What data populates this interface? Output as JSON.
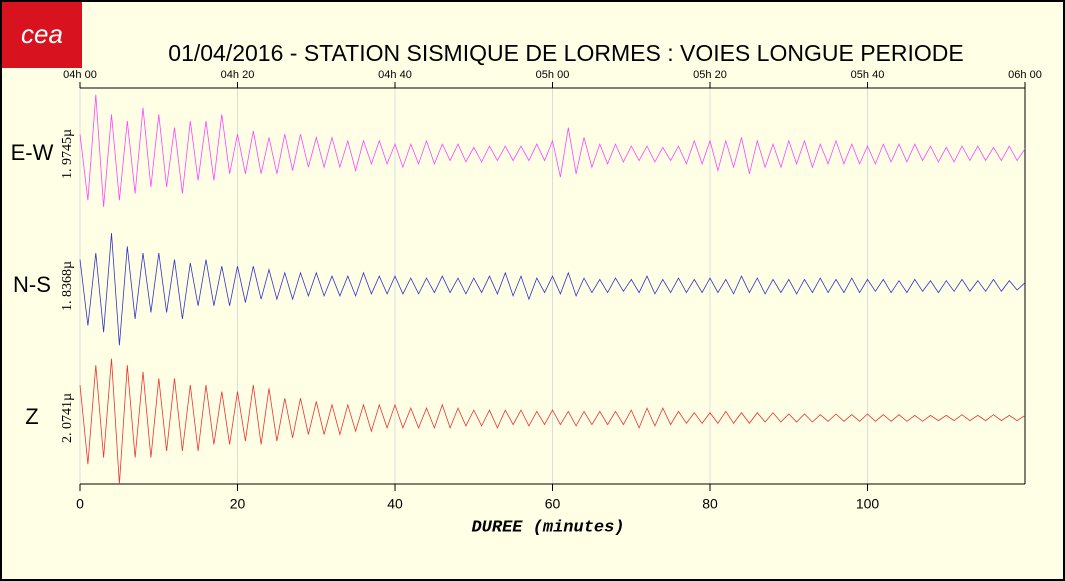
{
  "logo": "cea",
  "chart_data": {
    "type": "line",
    "title": "01/04/2016  -  STATION SISMIQUE DE LORMES : VOIES LONGUE PERIODE",
    "xlabel": "DUREE (minutes)",
    "xlim": [
      0,
      120
    ],
    "xticks": [
      0,
      20,
      40,
      60,
      80,
      100
    ],
    "x2ticks": [
      {
        "value": 0,
        "label": "04h 00"
      },
      {
        "value": 20,
        "label": "04h 20"
      },
      {
        "value": 40,
        "label": "04h 40"
      },
      {
        "value": 60,
        "label": "05h 00"
      },
      {
        "value": 80,
        "label": "05h 20"
      },
      {
        "value": 100,
        "label": "05h 40"
      },
      {
        "value": 120,
        "label": "06h 00"
      }
    ],
    "ylim": [
      -1,
      1
    ],
    "grid": true,
    "x": [
      0,
      1,
      2,
      3,
      4,
      5,
      6,
      7,
      8,
      9,
      10,
      11,
      12,
      13,
      14,
      15,
      16,
      17,
      18,
      19,
      20,
      21,
      22,
      23,
      24,
      25,
      26,
      27,
      28,
      29,
      30,
      31,
      32,
      33,
      34,
      35,
      36,
      37,
      38,
      39,
      40,
      41,
      42,
      43,
      44,
      45,
      46,
      47,
      48,
      49,
      50,
      51,
      52,
      53,
      54,
      55,
      56,
      57,
      58,
      59,
      60,
      61,
      62,
      63,
      64,
      65,
      66,
      67,
      68,
      69,
      70,
      71,
      72,
      73,
      74,
      75,
      76,
      77,
      78,
      79,
      80,
      81,
      82,
      83,
      84,
      85,
      86,
      87,
      88,
      89,
      90,
      91,
      92,
      93,
      94,
      95,
      96,
      97,
      98,
      99,
      100,
      101,
      102,
      103,
      104,
      105,
      106,
      107,
      108,
      109,
      110,
      111,
      112,
      113,
      114,
      115,
      116,
      117,
      118,
      119,
      120
    ],
    "series": [
      {
        "name": "E-W",
        "scale_label": "1. 9745µ",
        "color": "#ff44ff",
        "values": [
          0.3,
          -0.7,
          0.9,
          -0.8,
          0.6,
          -0.7,
          0.5,
          -0.6,
          0.7,
          -0.5,
          0.6,
          -0.5,
          0.4,
          -0.6,
          0.5,
          -0.4,
          0.5,
          -0.4,
          0.6,
          -0.3,
          0.3,
          -0.3,
          0.35,
          -0.3,
          0.25,
          -0.3,
          0.3,
          -0.25,
          0.3,
          -0.2,
          0.25,
          -0.2,
          0.25,
          -0.2,
          0.2,
          -0.25,
          0.2,
          -0.15,
          0.2,
          -0.15,
          0.15,
          -0.2,
          0.15,
          -0.15,
          0.2,
          -0.15,
          0.15,
          -0.1,
          0.15,
          -0.12,
          0.1,
          -0.12,
          0.12,
          -0.1,
          0.12,
          -0.1,
          0.12,
          -0.1,
          0.15,
          -0.1,
          0.2,
          -0.35,
          0.4,
          -0.3,
          0.25,
          -0.2,
          0.15,
          -0.15,
          0.15,
          -0.12,
          0.12,
          -0.1,
          0.12,
          -0.12,
          0.1,
          -0.1,
          0.12,
          -0.15,
          0.2,
          -0.15,
          0.2,
          -0.25,
          0.2,
          -0.2,
          0.25,
          -0.3,
          0.2,
          -0.2,
          0.15,
          -0.2,
          0.2,
          -0.15,
          0.2,
          -0.2,
          0.15,
          -0.15,
          0.2,
          -0.15,
          0.15,
          -0.15,
          0.12,
          -0.15,
          0.15,
          -0.12,
          0.15,
          -0.12,
          0.15,
          -0.1,
          0.12,
          -0.12,
          0.1,
          -0.12,
          0.12,
          -0.1,
          0.12,
          -0.1,
          0.1,
          -0.1,
          0.12,
          -0.1,
          0.08
        ]
      },
      {
        "name": "N-S",
        "scale_label": "1. 8368µ",
        "color": "#3333cc",
        "values": [
          0.4,
          -0.6,
          0.5,
          -0.7,
          0.8,
          -0.9,
          0.6,
          -0.5,
          0.5,
          -0.4,
          0.5,
          -0.4,
          0.4,
          -0.5,
          0.35,
          -0.3,
          0.4,
          -0.3,
          0.3,
          -0.3,
          0.3,
          -0.25,
          0.3,
          -0.2,
          0.25,
          -0.2,
          0.2,
          -0.2,
          0.2,
          -0.15,
          0.2,
          -0.15,
          0.15,
          -0.15,
          0.15,
          -0.15,
          0.2,
          -0.12,
          0.15,
          -0.12,
          0.15,
          -0.12,
          0.12,
          -0.12,
          0.12,
          -0.1,
          0.15,
          -0.1,
          0.12,
          -0.12,
          0.12,
          -0.1,
          0.15,
          -0.12,
          0.2,
          -0.15,
          0.15,
          -0.2,
          0.12,
          -0.1,
          0.15,
          -0.12,
          0.2,
          -0.15,
          0.12,
          -0.1,
          0.1,
          -0.1,
          0.12,
          -0.08,
          0.1,
          -0.1,
          0.15,
          -0.12,
          0.1,
          -0.1,
          0.12,
          -0.1,
          0.1,
          -0.1,
          0.12,
          -0.1,
          0.1,
          -0.12,
          0.15,
          -0.1,
          0.12,
          -0.12,
          0.1,
          -0.1,
          0.1,
          -0.12,
          0.1,
          -0.1,
          0.12,
          -0.1,
          0.1,
          -0.1,
          0.12,
          -0.1,
          0.1,
          -0.08,
          0.1,
          -0.1,
          0.08,
          -0.1,
          0.1,
          -0.08,
          0.08,
          -0.1,
          0.08,
          -0.08,
          0.1,
          -0.08,
          0.08,
          -0.08,
          0.1,
          -0.08,
          0.08,
          -0.06,
          0.05
        ]
      },
      {
        "name": "Z",
        "scale_label": "2. 0741µ",
        "color": "#ee3333",
        "values": [
          0.5,
          -0.7,
          0.8,
          -0.6,
          0.9,
          -1.0,
          0.8,
          -0.6,
          0.7,
          -0.6,
          0.6,
          -0.5,
          0.6,
          -0.5,
          0.5,
          -0.5,
          0.5,
          -0.4,
          0.4,
          -0.4,
          0.4,
          -0.35,
          0.5,
          -0.4,
          0.45,
          -0.35,
          0.3,
          -0.3,
          0.3,
          -0.25,
          0.25,
          -0.25,
          0.2,
          -0.25,
          0.2,
          -0.2,
          0.2,
          -0.2,
          0.2,
          -0.15,
          0.2,
          -0.15,
          0.15,
          -0.15,
          0.15,
          -0.15,
          0.2,
          -0.15,
          0.15,
          -0.12,
          0.12,
          -0.12,
          0.12,
          -0.15,
          0.12,
          -0.1,
          0.12,
          -0.12,
          0.1,
          -0.1,
          0.12,
          -0.1,
          0.1,
          -0.12,
          0.1,
          -0.1,
          0.1,
          -0.1,
          0.1,
          -0.1,
          0.12,
          -0.15,
          0.15,
          -0.12,
          0.15,
          -0.1,
          0.1,
          -0.08,
          0.08,
          -0.08,
          0.08,
          -0.08,
          0.1,
          -0.08,
          0.08,
          -0.08,
          0.08,
          -0.06,
          0.08,
          -0.06,
          0.06,
          -0.06,
          0.06,
          -0.06,
          0.05,
          -0.05,
          0.06,
          -0.05,
          0.05,
          -0.05,
          0.06,
          -0.05,
          0.05,
          -0.05,
          0.05,
          -0.05,
          0.04,
          -0.05,
          0.04,
          -0.04,
          0.04,
          -0.04,
          0.05,
          -0.04,
          0.04,
          -0.04,
          0.05,
          -0.04,
          0.04,
          -0.04,
          0.04
        ]
      }
    ]
  }
}
